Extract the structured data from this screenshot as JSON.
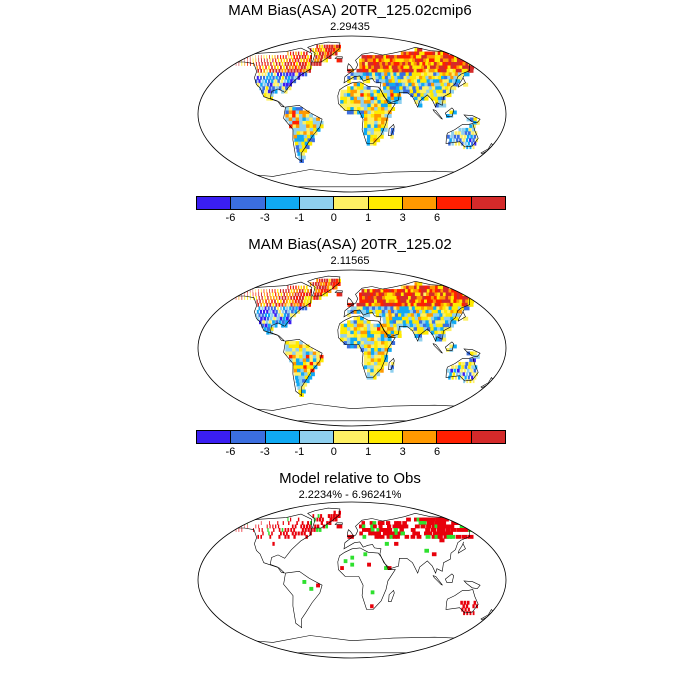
{
  "panels": [
    {
      "title": "MAM Bias(ASA) 20TR_125.02cmip6",
      "subtitle": "2.29435"
    },
    {
      "title": "MAM Bias(ASA) 20TR_125.02",
      "subtitle": "2.11565"
    },
    {
      "title": "Model relative to Obs",
      "subtitle": "2.2234% - 6.96241%"
    }
  ],
  "colorbar": {
    "colors": [
      "#3a1ef2",
      "#3b6ee0",
      "#10a9f3",
      "#8fd0ef",
      "#fef064",
      "#ffea00",
      "#ff9900",
      "#ff1f00",
      "#d42a2a"
    ],
    "tick_labels": [
      "-6",
      "-3",
      "-1",
      "0",
      "1",
      "3",
      "6"
    ]
  },
  "mask_colors": {
    "positive": "#e8000b",
    "negative": "#2ee02e"
  }
}
